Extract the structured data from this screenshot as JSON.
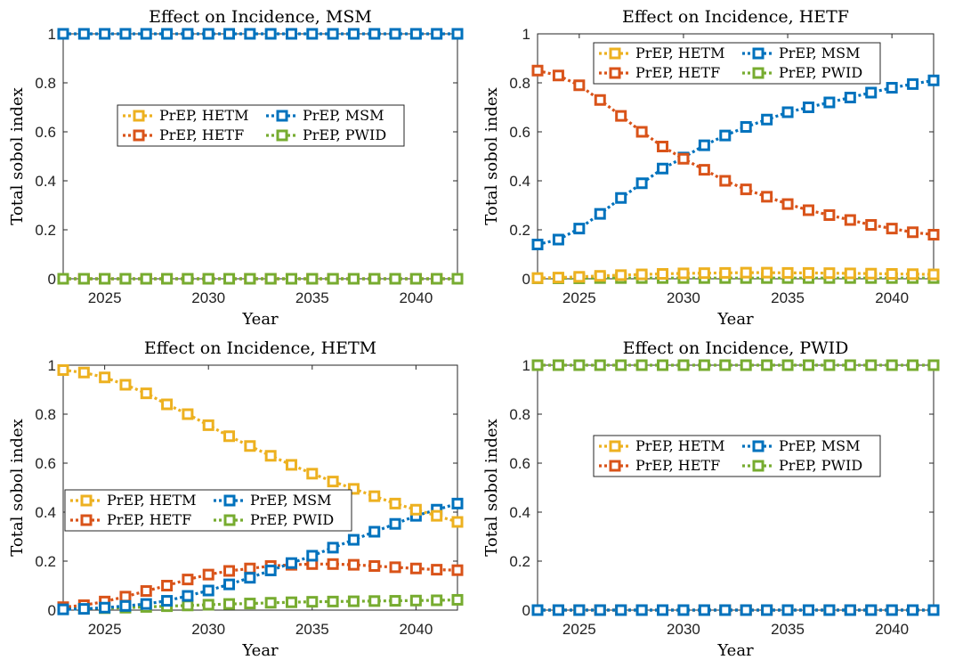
{
  "legend_order": [
    "PrEP, HETM",
    "PrEP, MSM",
    "PrEP, HETF",
    "PrEP, PWID"
  ],
  "colors": {
    "PrEP, HETM": "#EDB120",
    "PrEP, HETF": "#D95319",
    "PrEP, MSM": "#0072BD",
    "PrEP, PWID": "#77AC30"
  },
  "chart_data": [
    {
      "type": "line",
      "title": "Effect on Incidence, MSM",
      "xlabel": "Year",
      "ylabel": "Total sobol index",
      "xlim": [
        2023,
        2042
      ],
      "ylim": [
        0,
        1
      ],
      "xticks": [
        "2025",
        "2030",
        "2035",
        "2040"
      ],
      "yticks": [
        "0",
        "0.2",
        "0.4",
        "0.6",
        "0.8",
        "1"
      ],
      "legend_position": "center-left",
      "x": [
        2023,
        2024,
        2025,
        2026,
        2027,
        2028,
        2029,
        2030,
        2031,
        2032,
        2033,
        2034,
        2035,
        2036,
        2037,
        2038,
        2039,
        2040,
        2041,
        2042
      ],
      "series": [
        {
          "name": "PrEP, HETM",
          "values": [
            0,
            0,
            0,
            0,
            0,
            0,
            0,
            0,
            0,
            0,
            0,
            0,
            0,
            0,
            0,
            0,
            0,
            0,
            0,
            0
          ]
        },
        {
          "name": "PrEP, HETF",
          "values": [
            0,
            0,
            0,
            0,
            0,
            0,
            0,
            0,
            0,
            0,
            0,
            0,
            0,
            0,
            0,
            0,
            0,
            0,
            0,
            0
          ]
        },
        {
          "name": "PrEP, PWID",
          "values": [
            0,
            0,
            0,
            0,
            0,
            0,
            0,
            0,
            0,
            0,
            0,
            0,
            0,
            0,
            0,
            0,
            0,
            0,
            0,
            0
          ]
        },
        {
          "name": "PrEP, MSM",
          "values": [
            1,
            1,
            1,
            1,
            1,
            1,
            1,
            1,
            1,
            1,
            1,
            1,
            1,
            1,
            1,
            1,
            1,
            1,
            1,
            1
          ]
        }
      ]
    },
    {
      "type": "line",
      "title": "Effect on Incidence, HETF",
      "xlabel": "Year",
      "ylabel": "Total sobol index",
      "xlim": [
        2023,
        2042
      ],
      "ylim": [
        0,
        1
      ],
      "xticks": [
        "2025",
        "2030",
        "2035",
        "2040"
      ],
      "yticks": [
        "0",
        "0.2",
        "0.4",
        "0.6",
        "0.8",
        "1"
      ],
      "legend_position": "top",
      "x": [
        2023,
        2024,
        2025,
        2026,
        2027,
        2028,
        2029,
        2030,
        2031,
        2032,
        2033,
        2034,
        2035,
        2036,
        2037,
        2038,
        2039,
        2040,
        2041,
        2042
      ],
      "series": [
        {
          "name": "PrEP, PWID",
          "values": [
            0.002,
            0.002,
            0.002,
            0.003,
            0.003,
            0.003,
            0.003,
            0.003,
            0.003,
            0.003,
            0.003,
            0.003,
            0.003,
            0.003,
            0.003,
            0.003,
            0.003,
            0.003,
            0.003,
            0.003
          ]
        },
        {
          "name": "PrEP, HETM",
          "values": [
            0.003,
            0.005,
            0.008,
            0.012,
            0.015,
            0.018,
            0.02,
            0.022,
            0.023,
            0.024,
            0.025,
            0.025,
            0.024,
            0.024,
            0.023,
            0.022,
            0.021,
            0.02,
            0.019,
            0.018
          ]
        },
        {
          "name": "PrEP, MSM",
          "values": [
            0.14,
            0.16,
            0.205,
            0.265,
            0.33,
            0.39,
            0.45,
            0.495,
            0.545,
            0.585,
            0.62,
            0.65,
            0.68,
            0.7,
            0.72,
            0.74,
            0.76,
            0.78,
            0.795,
            0.81
          ]
        },
        {
          "name": "PrEP, HETF",
          "values": [
            0.85,
            0.83,
            0.79,
            0.73,
            0.665,
            0.6,
            0.54,
            0.49,
            0.445,
            0.4,
            0.365,
            0.335,
            0.305,
            0.28,
            0.26,
            0.24,
            0.22,
            0.205,
            0.19,
            0.18
          ]
        }
      ]
    },
    {
      "type": "line",
      "title": "Effect on Incidence, HETM",
      "xlabel": "Year",
      "ylabel": "Total sobol index",
      "xlim": [
        2023,
        2042
      ],
      "ylim": [
        0,
        1
      ],
      "xticks": [
        "2025",
        "2030",
        "2035",
        "2040"
      ],
      "yticks": [
        "0",
        "0.2",
        "0.4",
        "0.6",
        "0.8",
        "1"
      ],
      "legend_position": "lower-left",
      "x": [
        2023,
        2024,
        2025,
        2026,
        2027,
        2028,
        2029,
        2030,
        2031,
        2032,
        2033,
        2034,
        2035,
        2036,
        2037,
        2038,
        2039,
        2040,
        2041,
        2042
      ],
      "series": [
        {
          "name": "PrEP, PWID",
          "values": [
            0.005,
            0.006,
            0.008,
            0.01,
            0.013,
            0.016,
            0.019,
            0.022,
            0.025,
            0.027,
            0.03,
            0.032,
            0.034,
            0.035,
            0.036,
            0.037,
            0.038,
            0.039,
            0.04,
            0.042
          ]
        },
        {
          "name": "PrEP, HETF",
          "values": [
            0.012,
            0.02,
            0.035,
            0.055,
            0.078,
            0.1,
            0.125,
            0.145,
            0.16,
            0.17,
            0.18,
            0.185,
            0.188,
            0.188,
            0.185,
            0.18,
            0.175,
            0.17,
            0.165,
            0.163
          ]
        },
        {
          "name": "PrEP, MSM",
          "values": [
            0.003,
            0.005,
            0.01,
            0.017,
            0.025,
            0.038,
            0.058,
            0.08,
            0.105,
            0.132,
            0.162,
            0.192,
            0.222,
            0.255,
            0.287,
            0.32,
            0.352,
            0.385,
            0.41,
            0.435
          ]
        },
        {
          "name": "PrEP, HETM",
          "values": [
            0.98,
            0.97,
            0.95,
            0.92,
            0.885,
            0.84,
            0.8,
            0.755,
            0.71,
            0.67,
            0.63,
            0.593,
            0.557,
            0.525,
            0.495,
            0.465,
            0.435,
            0.41,
            0.385,
            0.36
          ]
        }
      ]
    },
    {
      "type": "line",
      "title": "Effect on Incidence, PWID",
      "xlabel": "Year",
      "ylabel": "Total sobol index",
      "xlim": [
        2023,
        2042
      ],
      "ylim": [
        0,
        1
      ],
      "xticks": [
        "2025",
        "2030",
        "2035",
        "2040"
      ],
      "yticks": [
        "0",
        "0.2",
        "0.4",
        "0.6",
        "0.8",
        "1"
      ],
      "legend_position": "center",
      "x": [
        2023,
        2024,
        2025,
        2026,
        2027,
        2028,
        2029,
        2030,
        2031,
        2032,
        2033,
        2034,
        2035,
        2036,
        2037,
        2038,
        2039,
        2040,
        2041,
        2042
      ],
      "series": [
        {
          "name": "PrEP, HETM",
          "values": [
            0,
            0,
            0,
            0,
            0,
            0,
            0,
            0,
            0,
            0,
            0,
            0,
            0,
            0,
            0,
            0,
            0,
            0,
            0,
            0
          ]
        },
        {
          "name": "PrEP, HETF",
          "values": [
            0,
            0,
            0,
            0,
            0,
            0,
            0,
            0,
            0,
            0,
            0,
            0,
            0,
            0,
            0,
            0,
            0,
            0,
            0,
            0
          ]
        },
        {
          "name": "PrEP, MSM",
          "values": [
            0,
            0,
            0,
            0,
            0,
            0,
            0,
            0,
            0,
            0,
            0,
            0,
            0,
            0,
            0,
            0,
            0,
            0,
            0,
            0
          ]
        },
        {
          "name": "PrEP, PWID",
          "values": [
            1,
            1,
            1,
            1,
            1,
            1,
            1,
            1,
            1,
            1,
            1,
            1,
            1,
            1,
            1,
            1,
            1,
            1,
            1,
            1
          ]
        }
      ]
    }
  ]
}
